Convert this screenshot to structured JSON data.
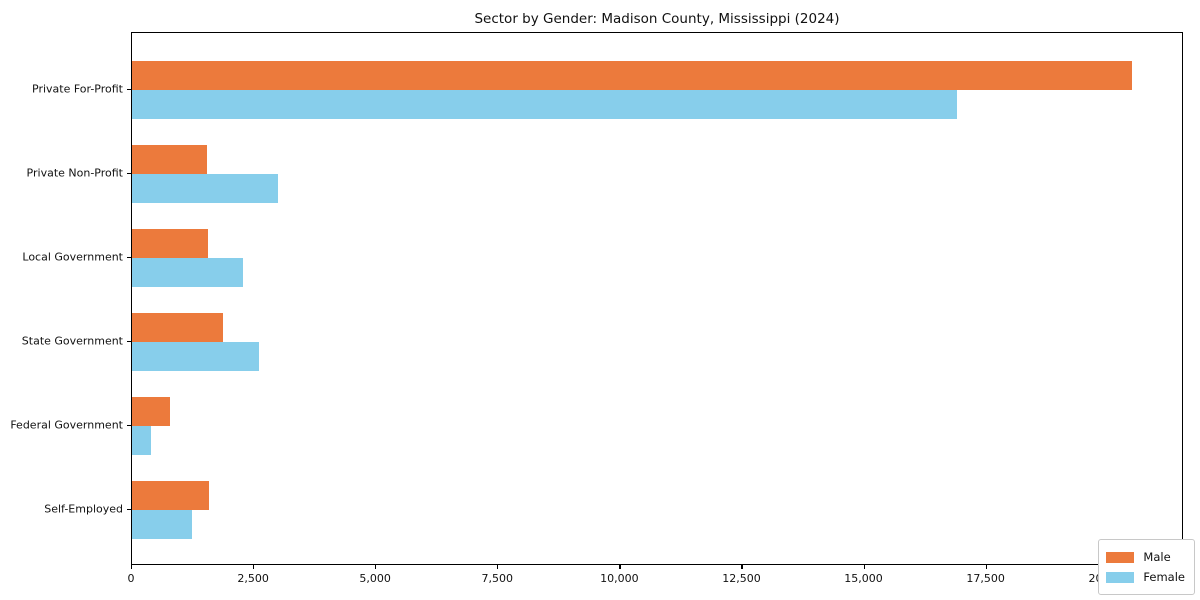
{
  "chart_data": {
    "type": "bar",
    "orientation": "horizontal",
    "title": "Sector by Gender: Madison County, Mississippi (2024)",
    "xlabel": "",
    "ylabel": "",
    "categories": [
      "Private For-Profit",
      "Private Non-Profit",
      "Local Government",
      "State Government",
      "Federal Government",
      "Self-Employed"
    ],
    "series": [
      {
        "name": "Male",
        "color": "#ec7a3c",
        "values": [
          20480,
          1530,
          1560,
          1860,
          780,
          1580
        ]
      },
      {
        "name": "Female",
        "color": "#87ceeb",
        "values": [
          16900,
          2990,
          2280,
          2600,
          390,
          1220
        ]
      }
    ],
    "xlim": [
      0,
      21500
    ],
    "xticks": [
      0,
      2500,
      5000,
      7500,
      10000,
      12500,
      15000,
      17500,
      20000
    ],
    "xtick_labels": [
      "0",
      "2,500",
      "5,000",
      "7,500",
      "10,000",
      "12,500",
      "15,000",
      "17,500",
      "20,000"
    ],
    "grid": false,
    "legend": {
      "position": "lower right",
      "entries": [
        "Male",
        "Female"
      ]
    }
  }
}
